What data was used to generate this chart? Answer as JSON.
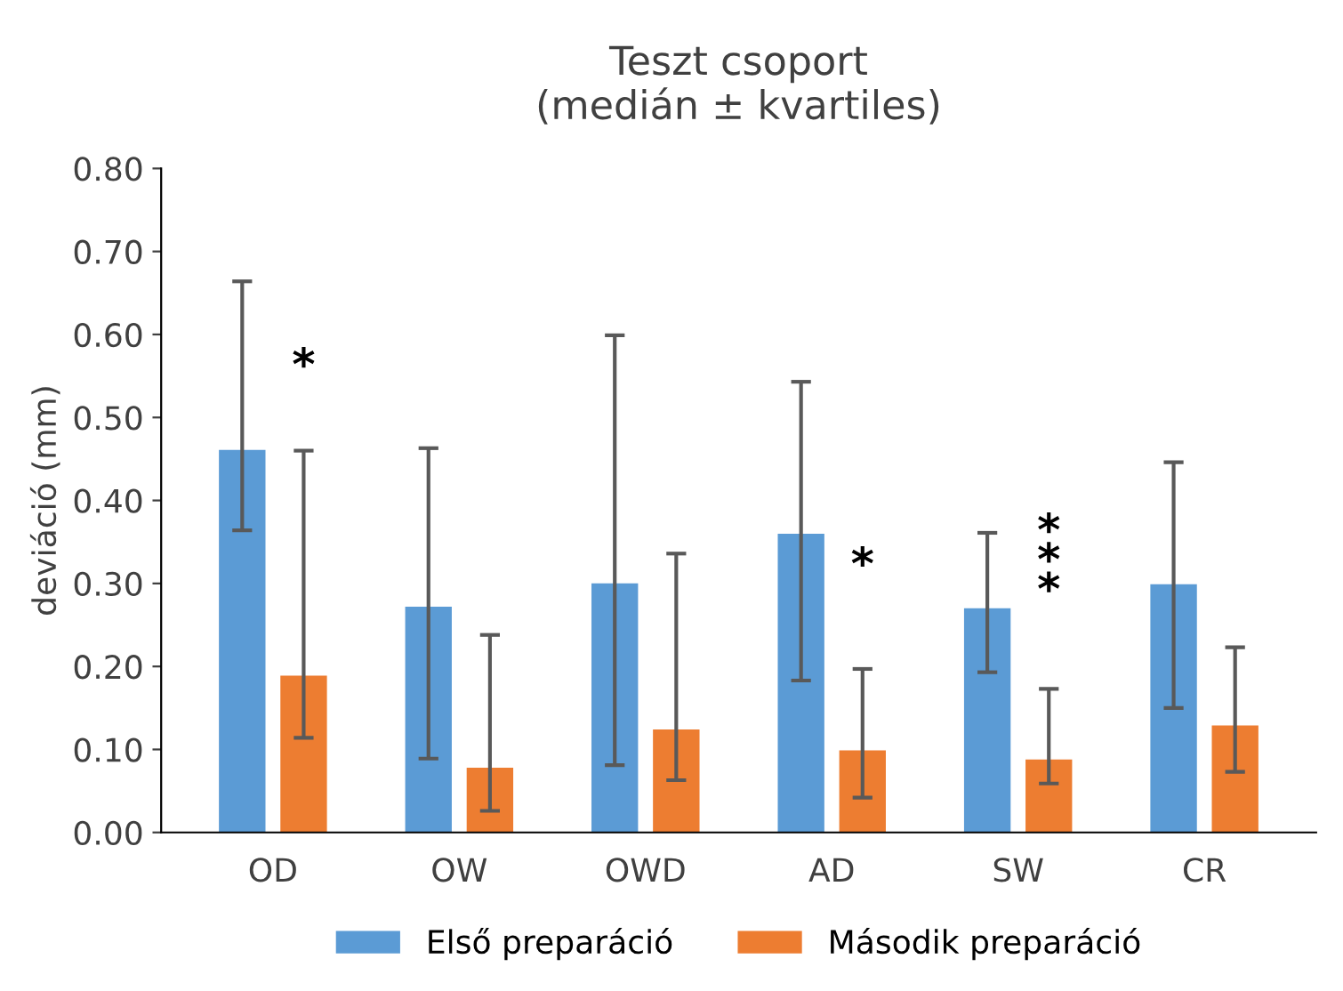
{
  "chart_data": {
    "type": "bar",
    "title": "Teszt csoport\n(medián ± kvartiles)",
    "ylabel": "deviáció (mm)",
    "categories": [
      "OD",
      "OW",
      "OWD",
      "AD",
      "SW",
      "CR"
    ],
    "series": [
      {
        "name": "Első preparáció",
        "color": "#5b9bd5",
        "values": [
          0.461,
          0.272,
          0.3,
          0.36,
          0.27,
          0.299
        ],
        "errors": [
          [
            0.364,
            0.664
          ],
          [
            0.089,
            0.463
          ],
          [
            0.081,
            0.599
          ],
          [
            0.183,
            0.543
          ],
          [
            0.193,
            0.361
          ],
          [
            0.15,
            0.446
          ]
        ]
      },
      {
        "name": "Második preparáció",
        "color": "#ed7d31",
        "values": [
          0.189,
          0.078,
          0.124,
          0.099,
          0.088,
          0.129
        ],
        "errors": [
          [
            0.114,
            0.46
          ],
          [
            0.026,
            0.238
          ],
          [
            0.063,
            0.336
          ],
          [
            0.042,
            0.197
          ],
          [
            0.059,
            0.173
          ],
          [
            0.073,
            0.223
          ]
        ]
      }
    ],
    "annotations": [
      "*",
      "*",
      "***"
    ],
    "ylim": [
      0,
      0.8
    ],
    "yticks": [
      {
        "value": 0,
        "label": "0.00"
      },
      {
        "value": 0.1,
        "label": "0.10"
      },
      {
        "value": 0.2,
        "label": "0.20"
      },
      {
        "value": 0.3,
        "label": "0.30"
      },
      {
        "value": 0.4,
        "label": "0.40"
      },
      {
        "value": 0.5,
        "label": "0.50"
      },
      {
        "value": 0.6,
        "label": "0.60"
      },
      {
        "value": 0.7,
        "label": "0.70"
      },
      {
        "value": 0.8,
        "label": "0.80"
      }
    ],
    "grid": false,
    "legend": "bottom"
  }
}
